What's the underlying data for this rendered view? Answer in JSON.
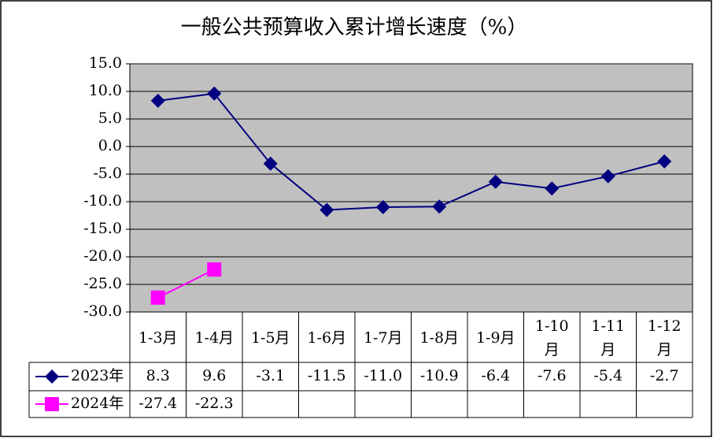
{
  "chart_data": {
    "type": "line",
    "title": "一般公共预算收入累计增长速度（%）",
    "categories": [
      "1-3月",
      "1-4月",
      "1-5月",
      "1-6月",
      "1-7月",
      "1-8月",
      "1-9月",
      "1-10月",
      "1-11月",
      "1-12月"
    ],
    "series": [
      {
        "name": "2023年",
        "color": "#000080",
        "marker": "diamond",
        "values": [
          8.3,
          9.6,
          -3.1,
          -11.5,
          -11.0,
          -10.9,
          -6.4,
          -7.6,
          -5.4,
          -2.7
        ],
        "value_labels": [
          "8.3",
          "9.6",
          "-3.1",
          "-11.5",
          "-11.0",
          "-10.9",
          "-6.4",
          "-7.6",
          "-5.4",
          "-2.7"
        ]
      },
      {
        "name": "2024年",
        "color": "#ff00ff",
        "marker": "square",
        "values": [
          -27.4,
          -22.3,
          null,
          null,
          null,
          null,
          null,
          null,
          null,
          null
        ],
        "value_labels": [
          "-27.4",
          "-22.3",
          null,
          null,
          null,
          null,
          null,
          null,
          null,
          null
        ]
      }
    ],
    "ylim": [
      -30,
      15
    ],
    "yticks": [
      {
        "value": 15,
        "label": "15.0"
      },
      {
        "value": 10,
        "label": "10.0"
      },
      {
        "value": 5,
        "label": "5.0"
      },
      {
        "value": 0,
        "label": "0.0"
      },
      {
        "value": -5,
        "label": "-5.0"
      },
      {
        "value": -10,
        "label": "-10.0"
      },
      {
        "value": -15,
        "label": "-15.0"
      },
      {
        "value": -20,
        "label": "-20.0"
      },
      {
        "value": -25,
        "label": "-25.0"
      },
      {
        "value": -30,
        "label": "-30.0"
      }
    ],
    "grid": true,
    "plot_background": "#c0c0c0",
    "data_table": true
  }
}
